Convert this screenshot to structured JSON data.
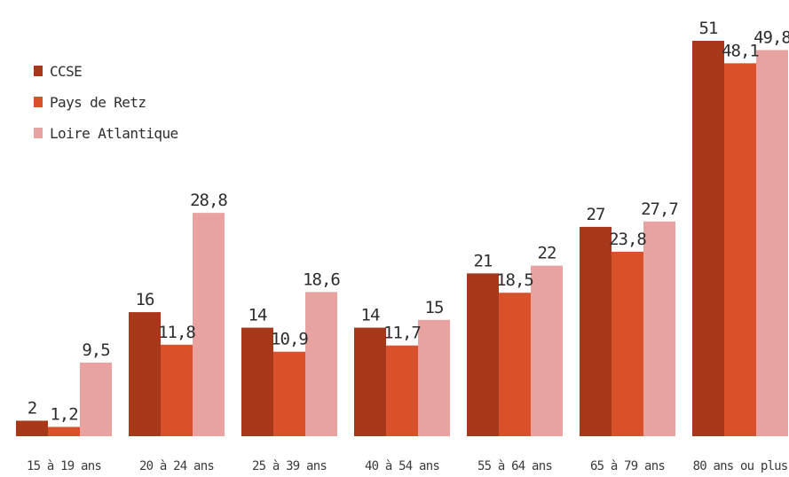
{
  "chart_data": {
    "type": "bar",
    "title": "",
    "xlabel": "",
    "ylabel": "",
    "categories": [
      "15 à 19 ans",
      "20 à 24 ans",
      "25 à 39 ans",
      "40 à 54 ans",
      "55 à 64 ans",
      "65 à 79 ans",
      "80 ans ou plus"
    ],
    "series": [
      {
        "name": "CCSE",
        "color": "#a8381a",
        "values": [
          2,
          16,
          14,
          14,
          21,
          27,
          51
        ],
        "labels": [
          "2",
          "16",
          "14",
          "14",
          "21",
          "27",
          "51"
        ]
      },
      {
        "name": "Pays de Retz",
        "color": "#d9512b",
        "values": [
          1.2,
          11.8,
          10.9,
          11.7,
          18.5,
          23.8,
          48.1
        ],
        "labels": [
          "1,2",
          "11,8",
          "10,9",
          "11,7",
          "18,5",
          "23,8",
          "48,1"
        ]
      },
      {
        "name": "Loire Atlantique",
        "color": "#e8a3a0",
        "values": [
          9.5,
          28.8,
          18.6,
          15,
          22,
          27.7,
          49.8
        ],
        "labels": [
          "9,5",
          "28,8",
          "18,6",
          "15",
          "22",
          "27,7",
          "49,8"
        ]
      }
    ],
    "ylim": [
      0,
      51
    ],
    "grid": false,
    "legend_position": "top-left"
  }
}
